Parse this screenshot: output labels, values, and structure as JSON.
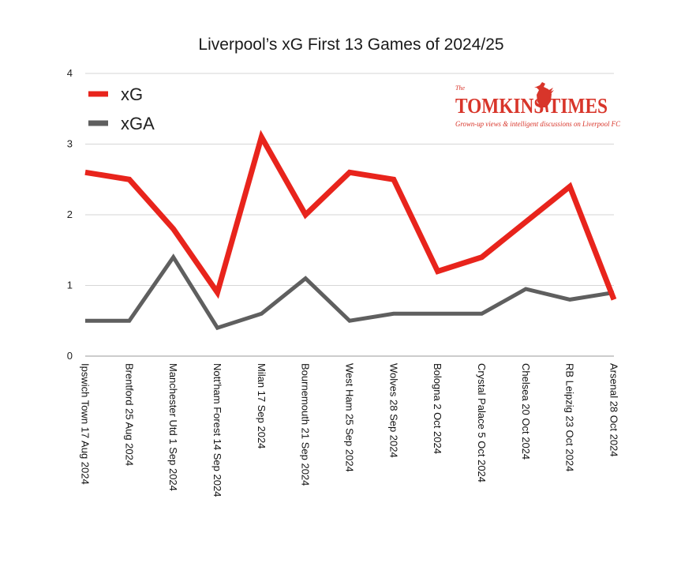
{
  "chart_data": {
    "type": "line",
    "title": "Liverpool’s xG First 13 Games of 2024/25",
    "xlabel": "",
    "ylabel": "",
    "ylim": [
      0,
      4
    ],
    "yticks": [
      "0",
      "1",
      "2",
      "3",
      "4"
    ],
    "grid": true,
    "legend_position": "top-left",
    "categories": [
      "Ipswich Town 17 Aug 2024",
      "Brentford 25 Aug 2024",
      "Manchester Utd 1 Sep 2024",
      "Nott'ham Forest 14 Sep 2024",
      "Milan 17 Sep 2024",
      "Bournemouth 21 Sep 2024",
      "West Ham 25 Sep 2024",
      "Wolves 28 Sep 2024",
      "Bologna 2 Oct 2024",
      "Crystal Palace 5 Oct 2024",
      "Chelsea 20 Oct 2024",
      "RB Leipzig 23 Oct 2024",
      "Arsenal 28 Oct 2024"
    ],
    "series": [
      {
        "name": "xG",
        "color": "#e8241c",
        "values": [
          2.6,
          2.5,
          1.8,
          0.9,
          3.1,
          2.0,
          2.6,
          2.5,
          1.2,
          1.4,
          1.9,
          2.4,
          0.8
        ]
      },
      {
        "name": "xGA",
        "color": "#5f5f5f",
        "values": [
          0.5,
          0.5,
          1.4,
          0.4,
          0.6,
          1.1,
          0.5,
          0.6,
          0.6,
          0.6,
          0.95,
          0.8,
          0.9
        ]
      }
    ]
  },
  "logo": {
    "the": "The",
    "name": "TOMKINS TIMES",
    "tagline": "Grown-up views & intelligent discussions on Liverpool FC",
    "color": "#d8352a"
  }
}
